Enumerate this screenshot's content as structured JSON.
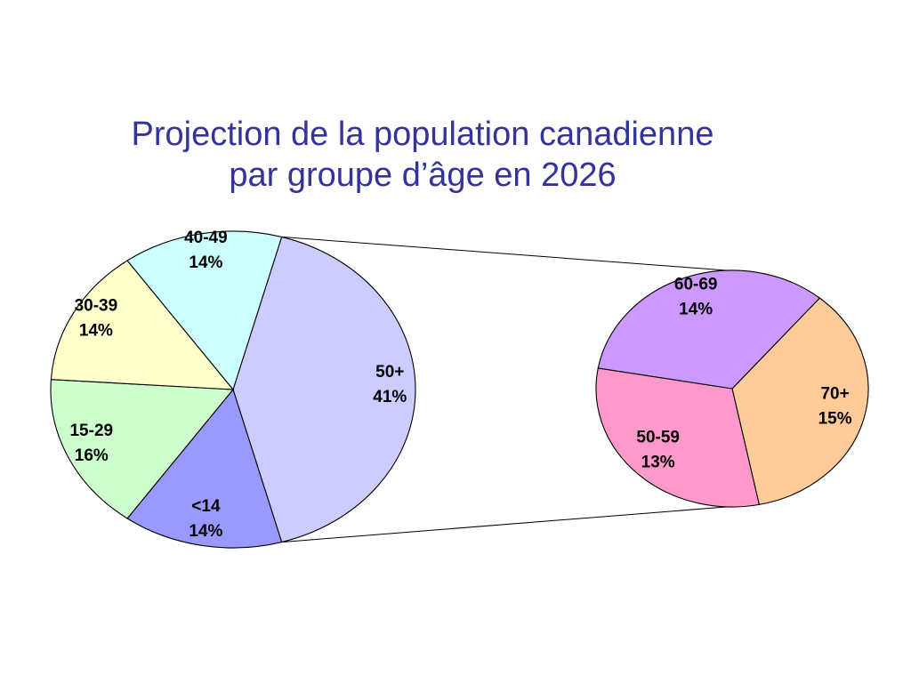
{
  "title": {
    "line1": "Projection de la population canadienne",
    "line2": "par groupe d’âge en 2026"
  },
  "chart_data": [
    {
      "type": "pie",
      "title": "Projection de la population canadienne par groupe d’âge en 2026",
      "categories": [
        "50+",
        "<14",
        "15-29",
        "30-39",
        "40-49"
      ],
      "values": [
        41,
        14,
        16,
        14,
        14
      ],
      "labels": [
        "41%",
        "14%",
        "16%",
        "14%",
        "14%"
      ],
      "colors": [
        "#ccccff",
        "#9999ff",
        "#ccffcc",
        "#ffffcc",
        "#ccffff"
      ]
    },
    {
      "type": "pie",
      "breakdown_of": "50+",
      "categories": [
        "70+",
        "50-59",
        "60-69"
      ],
      "values": [
        15,
        13,
        14
      ],
      "labels": [
        "15%",
        "13%",
        "14%"
      ],
      "colors": [
        "#ffcc99",
        "#ff99cc",
        "#cc99ff"
      ]
    }
  ]
}
